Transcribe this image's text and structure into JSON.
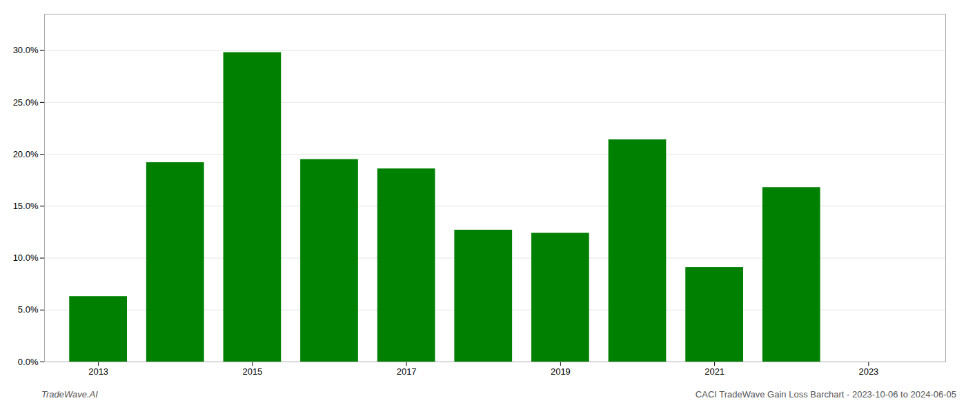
{
  "chart_data": {
    "type": "bar",
    "title": "CACI TradeWave Gain Loss Barchart - 2023-10-06 to 2024-06-05",
    "annotations": [
      "TradeWave.AI"
    ],
    "x": [
      2013,
      2014,
      2015,
      2016,
      2017,
      2018,
      2019,
      2020,
      2021,
      2022
    ],
    "values": [
      0.063,
      0.192,
      0.298,
      0.195,
      0.186,
      0.127,
      0.124,
      0.214,
      0.091,
      0.168
    ],
    "color": "#008000",
    "xlim": [
      2012.3,
      2024.0
    ],
    "xticks": [
      2013,
      2015,
      2017,
      2019,
      2021,
      2023
    ],
    "ylim": [
      0,
      0.335
    ],
    "yticks": [
      {
        "value": 0,
        "label": "0.0%"
      },
      {
        "value": 0.05,
        "label": "5.0%"
      },
      {
        "value": 0.1,
        "label": "10.0%"
      },
      {
        "value": 0.15,
        "label": "15.0%"
      },
      {
        "value": 0.2,
        "label": "20.0%"
      },
      {
        "value": 0.25,
        "label": "25.0%"
      },
      {
        "value": 0.3,
        "label": "30.0%"
      }
    ],
    "grid": true
  }
}
